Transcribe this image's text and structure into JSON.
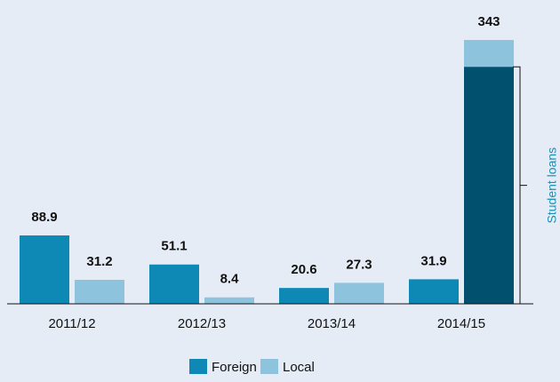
{
  "chart_data": {
    "type": "bar",
    "categories": [
      "2011/12",
      "2012/13",
      "2013/14",
      "2014/15"
    ],
    "series": [
      {
        "name": "Foreign",
        "color": "#0e88b5",
        "values": [
          88.9,
          51.1,
          20.6,
          31.9
        ]
      },
      {
        "name": "Local",
        "color": "#8ec3de",
        "values": [
          31.2,
          8.4,
          27.3,
          343
        ]
      }
    ],
    "subset": {
      "label": "Student loans",
      "series": "Local",
      "category": "2014/15",
      "value": 308,
      "color": "#00506e",
      "label_color": "#1a8fb8"
    },
    "legend": "bottom"
  }
}
